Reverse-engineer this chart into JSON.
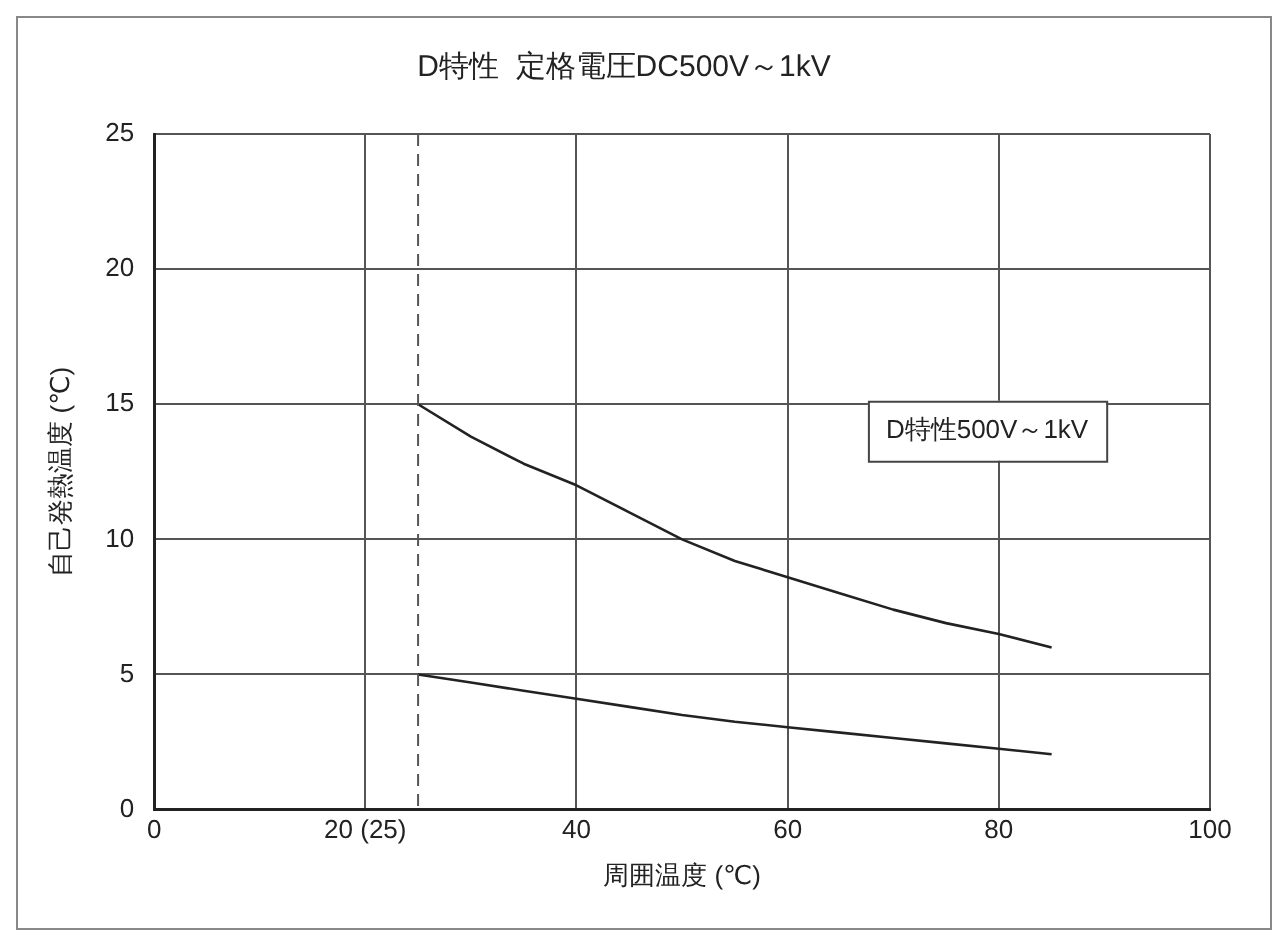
{
  "chart_data": {
    "type": "line",
    "title": "D特性  定格電圧DC500V～1kV",
    "xlabel": "周囲温度 (℃)",
    "ylabel": "自己発熱温度 (℃)",
    "series": [
      {
        "color": "#222222",
        "x": [
          25,
          30,
          35,
          40,
          45,
          50,
          55,
          60,
          65,
          70,
          75,
          80,
          85
        ],
        "values": [
          15,
          13.8,
          12.8,
          12.0,
          11.0,
          10.0,
          9.2,
          8.6,
          8.0,
          7.4,
          6.9,
          6.5,
          6.0
        ]
      },
      {
        "color": "#222222",
        "x": [
          25,
          30,
          35,
          40,
          45,
          50,
          55,
          60,
          65,
          70,
          75,
          80,
          85
        ],
        "values": [
          5,
          4.7,
          4.4,
          4.1,
          3.8,
          3.5,
          3.25,
          3.05,
          2.85,
          2.65,
          2.45,
          2.25,
          2.05
        ]
      }
    ],
    "xlim": [
      0,
      100
    ],
    "xticks": [
      0,
      {
        "value": 20,
        "label": "20 (25)"
      },
      40,
      60,
      80,
      100
    ],
    "ylim": [
      0,
      25
    ],
    "yticks": [
      0,
      5,
      10,
      15,
      20,
      25
    ],
    "ref_lines": [
      {
        "axis": "x",
        "value": 25,
        "line_style": "dashed",
        "color": "#555555"
      }
    ],
    "annotations": [
      "D特性500V～1kV"
    ],
    "grid": true,
    "legend": false,
    "marker": "none",
    "line_style": "solid"
  }
}
